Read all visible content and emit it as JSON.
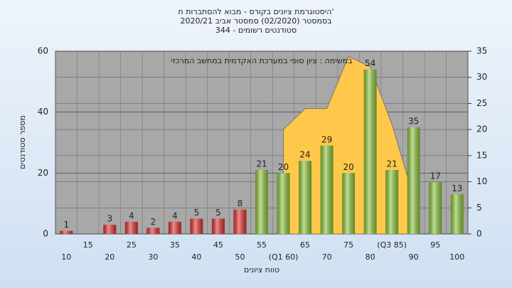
{
  "chart_data": {
    "type": "bar",
    "title": "היסטוגרמת ציונים בקורס - מבוא להסתברות ח'",
    "subtitle": "בסמסטר  (02/2020)  סמסטר אביב 2020/21",
    "subtitle2": "סטודנטים רשומים - 344",
    "annotation": "במשימה : ציון סופי במערכת האקדמית במחשב המרכזי",
    "x_label": "טווח ציונים",
    "y_label": "מספר סטודנטים",
    "categories": [
      "10",
      "15",
      "20",
      "25",
      "30",
      "35",
      "40",
      "45",
      "50",
      "55",
      "(Q1 60)",
      "65",
      "70",
      "75",
      "80",
      "(Q3 85)",
      "90",
      "95",
      "100"
    ],
    "values": [
      1,
      null,
      3,
      4,
      2,
      4,
      5,
      5,
      8,
      21,
      20,
      24,
      29,
      20,
      54,
      21,
      35,
      17,
      13
    ],
    "colors": [
      "#e03030",
      "#e03030",
      "#e03030",
      "#e03030",
      "#e03030",
      "#e03030",
      "#e03030",
      "#e03030",
      "#e03030",
      "#8cc43c",
      "#8cc43c",
      "#8cc43c",
      "#8cc43c",
      "#8cc43c",
      "#8cc43c",
      "#8cc43c",
      "#8cc43c",
      "#8cc43c",
      "#8cc43c"
    ],
    "area": {
      "values": [
        null,
        null,
        null,
        null,
        null,
        null,
        null,
        null,
        null,
        null,
        20,
        24,
        24,
        34,
        32,
        21,
        7,
        null,
        null
      ],
      "color": "#ffc84a",
      "axis": "y2"
    },
    "ylim": [
      0,
      60
    ],
    "yticks": [
      0,
      20,
      40,
      60
    ],
    "y2lim": [
      0,
      35
    ],
    "y2ticks": [
      0,
      5,
      10,
      15,
      20,
      25,
      30,
      35
    ],
    "grid": true
  }
}
